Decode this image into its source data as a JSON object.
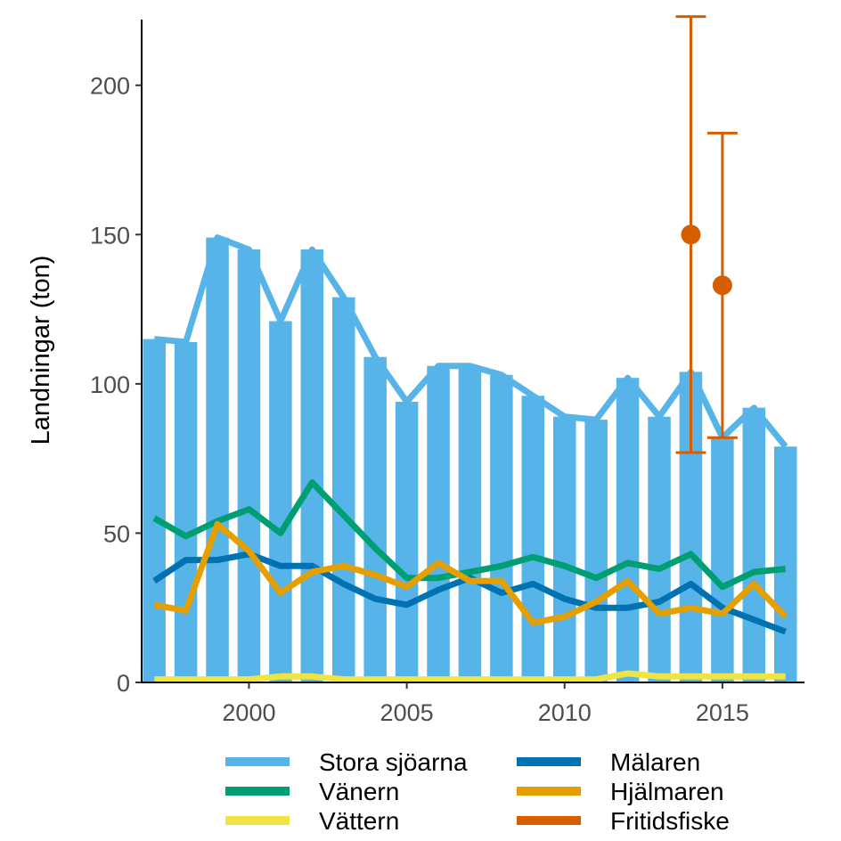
{
  "chart_data": {
    "type": "bar",
    "title": "",
    "xlabel": "",
    "ylabel": "Landningar (ton)",
    "xlim": [
      1996.6,
      2017.6
    ],
    "ylim": [
      0,
      222
    ],
    "x_ticks": [
      2000,
      2005,
      2010,
      2015
    ],
    "y_ticks": [
      0,
      50,
      100,
      150,
      200
    ],
    "grid": false,
    "legend_position": "bottom",
    "colors": {
      "stora": "#56B4E9",
      "vanern": "#009E73",
      "vattern": "#F0E442",
      "malaren": "#0072B2",
      "hjalmaren": "#E69F00",
      "fritidsfiske": "#D55E00"
    },
    "years": [
      1997,
      1998,
      1999,
      2000,
      2001,
      2002,
      2003,
      2004,
      2005,
      2006,
      2007,
      2008,
      2009,
      2010,
      2011,
      2012,
      2013,
      2014,
      2015,
      2016,
      2017
    ],
    "bars": {
      "name": "Stora sjöarna",
      "values": [
        115,
        114,
        149,
        145,
        121,
        145,
        129,
        109,
        94,
        106,
        106,
        103,
        96,
        89,
        88,
        102,
        89,
        104,
        82,
        92,
        79
      ]
    },
    "series": [
      {
        "key": "stora",
        "name": "Stora sjöarna",
        "values": [
          115,
          114,
          149,
          145,
          121,
          145,
          129,
          109,
          94,
          106,
          106,
          103,
          96,
          89,
          88,
          102,
          89,
          104,
          82,
          92,
          79
        ]
      },
      {
        "key": "vanern",
        "name": "Vänern",
        "values": [
          55,
          49,
          54,
          58,
          50,
          67,
          56,
          45,
          35,
          35,
          37,
          39,
          42,
          39,
          35,
          40,
          38,
          43,
          32,
          37,
          38
        ]
      },
      {
        "key": "vattern",
        "name": "Vättern",
        "values": [
          1,
          1,
          1,
          1,
          2,
          2,
          1,
          1,
          1,
          1,
          1,
          1,
          1,
          1,
          1,
          3,
          2,
          2,
          2,
          2,
          2
        ]
      },
      {
        "key": "malaren",
        "name": "Mälaren",
        "values": [
          34,
          41,
          41,
          43,
          39,
          39,
          33,
          28,
          26,
          31,
          35,
          30,
          33,
          28,
          25,
          25,
          27,
          33,
          25,
          21,
          17
        ]
      },
      {
        "key": "hjalmaren",
        "name": "Hjälmaren",
        "values": [
          26,
          24,
          53,
          44,
          30,
          37,
          39,
          36,
          32,
          40,
          34,
          34,
          20,
          22,
          27,
          34,
          23,
          25,
          23,
          33,
          22
        ]
      }
    ],
    "fritidsfiske": {
      "name": "Fritidsfiske",
      "points": [
        {
          "x": 2014,
          "y": 150,
          "lower": 77,
          "upper": 223
        },
        {
          "x": 2015,
          "y": 133,
          "lower": 82,
          "upper": 184
        }
      ]
    },
    "legend": [
      {
        "key": "stora",
        "label": "Stora sjöarna"
      },
      {
        "key": "vanern",
        "label": "Vänern"
      },
      {
        "key": "vattern",
        "label": "Vättern"
      },
      {
        "key": "malaren",
        "label": "Mälaren"
      },
      {
        "key": "hjalmaren",
        "label": "Hjälmaren"
      },
      {
        "key": "fritidsfiske",
        "label": "Fritidsfiske"
      }
    ]
  }
}
